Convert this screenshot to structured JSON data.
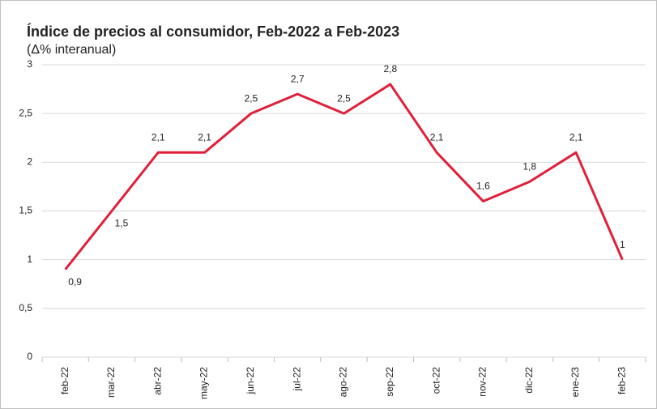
{
  "chart_data": {
    "type": "line",
    "title": "Índice de precios al consumidor, Feb-2022 a Feb-2023",
    "subtitle": "(Δ% interanual)",
    "categories": [
      "feb-22",
      "mar-22",
      "abr-22",
      "may-22",
      "jun-22",
      "jul-22",
      "ago-22",
      "sep-22",
      "oct-22",
      "nov-22",
      "dic-22",
      "ene-23",
      "feb-23"
    ],
    "values": [
      0.9,
      1.5,
      2.1,
      2.1,
      2.5,
      2.7,
      2.5,
      2.8,
      2.1,
      1.6,
      1.8,
      2.1,
      1
    ],
    "value_labels": [
      "0,9",
      "1,5",
      "2,1",
      "2,1",
      "2,5",
      "2,7",
      "2,5",
      "2,8",
      "2,1",
      "1,6",
      "1,8",
      "2,1",
      "1"
    ],
    "color": "#e0203a",
    "ylim": [
      0,
      3
    ],
    "yticks": [
      0,
      {
        "value": 0.5,
        "label": "0,5"
      },
      1,
      {
        "value": 1.5,
        "label": "1,5"
      },
      2,
      {
        "value": 2.5,
        "label": "2,5"
      },
      3
    ],
    "grid": true
  }
}
